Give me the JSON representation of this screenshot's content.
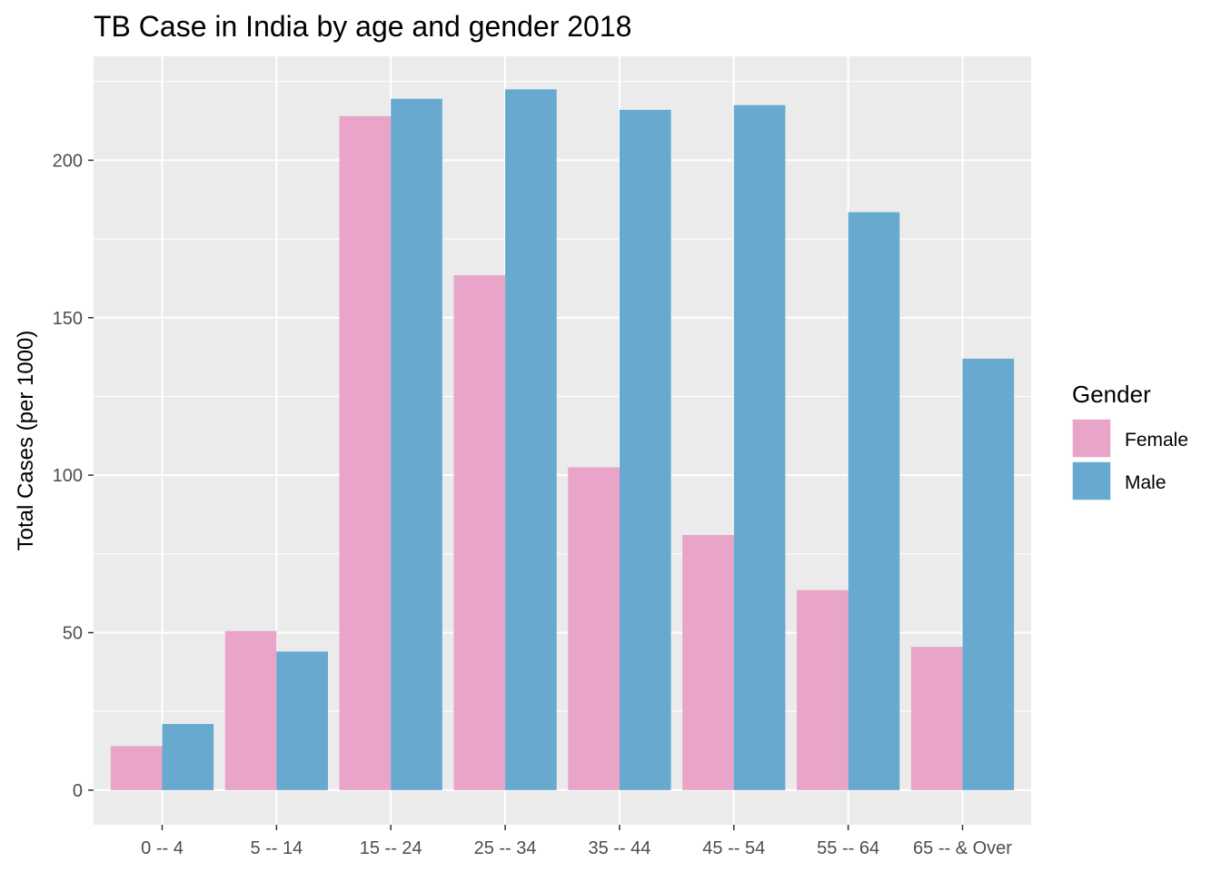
{
  "chart_data": {
    "type": "bar",
    "title": "TB Case in India by age and gender 2018",
    "xlabel": "",
    "ylabel": "Total Cases (per 1000)",
    "categories": [
      "0 -- 4",
      "5 -- 14",
      "15 -- 24",
      "25 -- 34",
      "35 -- 44",
      "45 -- 54",
      "55 -- 64",
      "65 -- & Over"
    ],
    "series": [
      {
        "name": "Female",
        "color": "#E8A5C9",
        "values": [
          14,
          50.5,
          214,
          163.5,
          102.5,
          81,
          63.5,
          45.5
        ]
      },
      {
        "name": "Male",
        "color": "#67A9CF",
        "values": [
          21,
          44,
          219.5,
          222.5,
          216,
          217.5,
          183.5,
          137
        ]
      }
    ],
    "ylim": [
      -11,
      233
    ],
    "yticks": [
      0,
      50,
      100,
      150,
      200
    ],
    "grid": true,
    "legend": {
      "title": "Gender",
      "position": "right"
    },
    "panel_color": "#EBEBEB",
    "grid_color": "#FFFFFF"
  }
}
